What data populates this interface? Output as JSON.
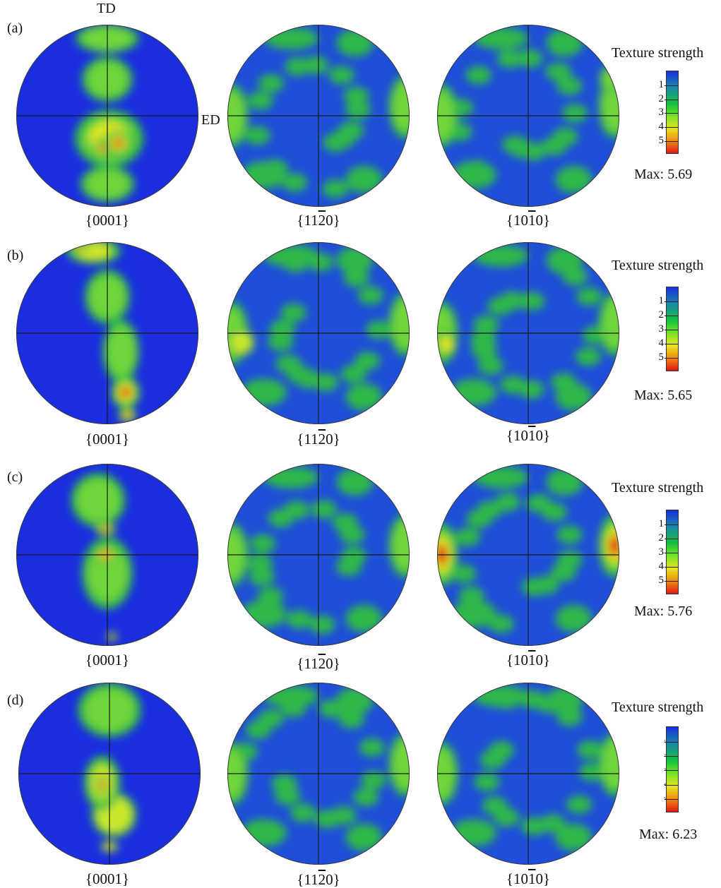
{
  "axes": {
    "td": "TD",
    "ed": "ED"
  },
  "planes": {
    "p0001": {
      "left": "{0001}",
      "bar": "",
      "right": ""
    },
    "p1120": {
      "left": "{11",
      "bar": "2",
      "right": "0}"
    },
    "p1010": {
      "left": "{10",
      "bar": "1",
      "right": "0}"
    }
  },
  "legend_ticks": [
    "1",
    "2",
    "3",
    "4",
    "5"
  ],
  "colors": {
    "low": "#1a2ee0",
    "mid": "#14c23a",
    "high_mid": "#e6e61e",
    "high": "#e01818"
  },
  "rows": [
    {
      "label": "(a)",
      "legend_title": "Texture strength",
      "max": "Max: 5.69"
    },
    {
      "label": "(b)",
      "legend_title": "Texture strength",
      "max": "Max: 5.65"
    },
    {
      "label": "(c)",
      "legend_title": "Texture strength",
      "max": "Max: 5.76"
    },
    {
      "label": "(d)",
      "legend_title": "Texture strength",
      "max": "Max: 6.23"
    }
  ]
}
